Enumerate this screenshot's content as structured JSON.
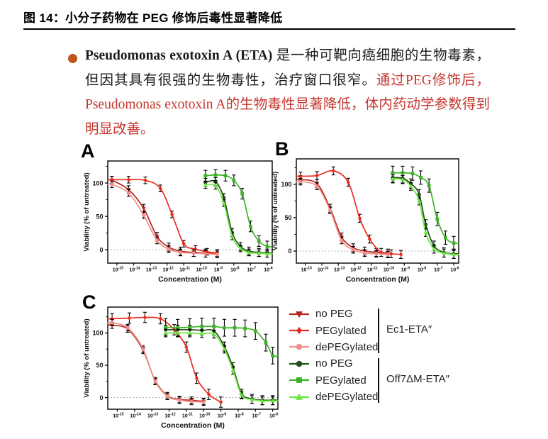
{
  "header": {
    "title": "图 14：小分子药物在 PEG 修饰后毒性显著降低"
  },
  "colors": {
    "red_text": "#c5372e",
    "bullet": "#c2531b",
    "axis": "#000000",
    "zero_line": "#909090"
  },
  "bullet": {
    "lead_bold": "Pseudomonas exotoxin A (ETA)",
    "body_black": " 是一种可靶向癌细胞的生物毒素，但因其具有很强的生物毒性，治疗窗口很窄。",
    "body_red": "通过PEG修饰后，Pseudomonas exotoxin A的生物毒性显著降低，体内药动学参数得到明显改善。"
  },
  "legend": {
    "groups": [
      {
        "label": "Ec1-ETA″",
        "entries": [
          {
            "label": "no PEG",
            "color": "#b2261e",
            "marker": "tri-down"
          },
          {
            "label": "PEGylated",
            "color": "#e72c1f",
            "marker": "diamond"
          },
          {
            "label": "dePEGylated",
            "color": "#f1908a",
            "marker": "circle"
          }
        ]
      },
      {
        "label": "Off7ΔM-ETA″",
        "entries": [
          {
            "label": "no PEG",
            "color": "#24511b",
            "marker": "circle"
          },
          {
            "label": "PEGylated",
            "color": "#3eb228",
            "marker": "square"
          },
          {
            "label": "dePEGylated",
            "color": "#6be93f",
            "marker": "tri-up"
          }
        ]
      }
    ]
  },
  "chart_data": [
    {
      "type": "line",
      "panel": "A",
      "xlabel": "Concentration (M)",
      "ylabel": "Viability (% of untreated)",
      "x_tick_base": "10",
      "x_tick_exponents": [
        -15,
        -14,
        -13,
        -12,
        -11,
        -10,
        -9,
        -8,
        -7,
        -6
      ],
      "y_ticks": [
        0,
        50,
        100
      ],
      "y_minor_ticks": [
        25,
        75,
        125
      ],
      "xlim": [
        -15.55,
        -5.7
      ],
      "ylim": [
        -20,
        133
      ],
      "zero_line": true,
      "grid": false,
      "series": [
        {
          "name": "no PEG (Ec1-ETA″)",
          "color": "#b2261e",
          "marker": "tri-down",
          "extend": "left",
          "err": 6,
          "x": [
            -15.3,
            -14.3,
            -13.4,
            -12.6,
            -11.9,
            -11.2,
            -10.4,
            -9.7,
            -9.0
          ],
          "y": [
            104,
            90,
            62,
            20,
            4,
            -2,
            -4,
            -5,
            -6
          ]
        },
        {
          "name": "PEGylated (Ec1-ETA″)",
          "color": "#e72c1f",
          "marker": "diamond",
          "extend": "left",
          "err": 5,
          "x": [
            -15.3,
            -14.3,
            -13.3,
            -12.4,
            -11.7,
            -11.0,
            -10.3,
            -9.6,
            -9.0
          ],
          "y": [
            105,
            105,
            104,
            92,
            53,
            9,
            1,
            -3,
            -5
          ]
        },
        {
          "name": "dePEGylated (Ec1-ETA″)",
          "color": "#f1908a",
          "marker": "circle",
          "extend": "left",
          "err": 5,
          "x": [
            -15.3,
            -14.3,
            -13.4,
            -12.6,
            -11.9,
            -11.2,
            -10.4,
            -9.7,
            -9.0
          ],
          "y": [
            98,
            85,
            52,
            14,
            1,
            -4,
            -5,
            -6,
            -7
          ]
        },
        {
          "name": "no PEG (Off7ΔM-ETA″)",
          "color": "#24511b",
          "marker": "circle",
          "extend": "right",
          "err": 6,
          "x": [
            -9.7,
            -9.1,
            -8.6,
            -8.1,
            -7.6,
            -7.1,
            -6.5,
            -6.0
          ],
          "y": [
            101,
            102,
            78,
            26,
            5,
            -2,
            -4,
            -5
          ]
        },
        {
          "name": "PEGylated (Off7ΔM-ETA″)",
          "color": "#3eb228",
          "marker": "square",
          "extend": "right",
          "err": 8,
          "x": [
            -9.7,
            -9.1,
            -8.5,
            -8.0,
            -7.5,
            -7.0,
            -6.5,
            -6.0
          ],
          "y": [
            111,
            112,
            111,
            104,
            84,
            35,
            13,
            5
          ]
        },
        {
          "name": "dePEGylated (Off7ΔM-ETA″)",
          "color": "#6be93f",
          "marker": "tri-up",
          "extend": "right",
          "err": 5,
          "x": [
            -9.7,
            -9.1,
            -8.6,
            -8.1,
            -7.6,
            -7.1,
            -6.5,
            -6.0
          ],
          "y": [
            97,
            96,
            70,
            20,
            2,
            -4,
            -5,
            -6
          ]
        }
      ]
    },
    {
      "type": "line",
      "panel": "B",
      "xlabel": "Concentration (M)",
      "ylabel": "Viability (% of untreated)",
      "x_tick_base": "10",
      "x_tick_exponents": [
        -15,
        -14,
        -13,
        -12,
        -11,
        -10,
        -9,
        -8,
        -7,
        -6
      ],
      "y_ticks": [
        0,
        50,
        100
      ],
      "y_minor_ticks": [
        25,
        75,
        125
      ],
      "xlim": [
        -15.55,
        -5.7
      ],
      "ylim": [
        -18,
        138
      ],
      "zero_line": true,
      "grid": false,
      "series": [
        {
          "name": "no PEG (Ec1-ETA″)",
          "color": "#b2261e",
          "marker": "tri-down",
          "extend": "left",
          "err": 6,
          "x": [
            -15.3,
            -14.3,
            -13.5,
            -12.8,
            -12.1,
            -11.4,
            -10.7,
            -10.0
          ],
          "y": [
            107,
            101,
            64,
            21,
            5,
            0,
            -2,
            -3
          ]
        },
        {
          "name": "PEGylated (Ec1-ETA″)",
          "color": "#e72c1f",
          "marker": "diamond",
          "extend": "left",
          "err": 6,
          "x": [
            -15.3,
            -14.3,
            -13.3,
            -12.4,
            -11.7,
            -11.1,
            -10.4,
            -9.8,
            -9.2
          ],
          "y": [
            112,
            113,
            120,
            103,
            49,
            18,
            -2,
            -4,
            -5
          ]
        },
        {
          "name": "dePEGylated (Ec1-ETA″)",
          "color": "#f1908a",
          "marker": "circle",
          "extend": "left",
          "err": 5,
          "x": [
            -15.3,
            -14.3,
            -13.5,
            -12.8,
            -12.1,
            -11.4,
            -10.7,
            -10.0
          ],
          "y": [
            104,
            97,
            61,
            16,
            2,
            -3,
            -4,
            -5
          ]
        },
        {
          "name": "no PEG (Off7ΔM-ETA″)",
          "color": "#24511b",
          "marker": "circle",
          "extend": "right",
          "err": 7,
          "x": [
            -9.7,
            -9.1,
            -8.6,
            -8.1,
            -7.7,
            -7.2,
            -6.6,
            -6.0
          ],
          "y": [
            110,
            109,
            101,
            85,
            40,
            8,
            -2,
            -4
          ]
        },
        {
          "name": "PEGylated (Off7ΔM-ETA″)",
          "color": "#3eb228",
          "marker": "square",
          "extend": "right",
          "err": 10,
          "x": [
            -9.7,
            -9.1,
            -8.5,
            -8.0,
            -7.5,
            -7.0,
            -6.5,
            -6.0
          ],
          "y": [
            117,
            117,
            116,
            110,
            98,
            48,
            20,
            12
          ]
        },
        {
          "name": "dePEGylated (Off7ΔM-ETA″)",
          "color": "#6be93f",
          "marker": "tri-up",
          "extend": "right",
          "err": 6,
          "x": [
            -9.7,
            -9.1,
            -8.6,
            -8.1,
            -7.7,
            -7.2,
            -6.6,
            -6.0
          ],
          "y": [
            108,
            107,
            97,
            75,
            28,
            3,
            -3,
            -5
          ]
        }
      ]
    },
    {
      "type": "line",
      "panel": "C",
      "xlabel": "Concentration (M)",
      "ylabel": "Viability (% of untreated)",
      "x_tick_base": "10",
      "x_tick_exponents": [
        -15,
        -14,
        -13,
        -12,
        -11,
        -10,
        -9,
        -8,
        -7,
        -6
      ],
      "y_ticks": [
        0,
        50,
        100
      ],
      "y_minor_ticks": [
        25,
        75,
        125
      ],
      "xlim": [
        -15.55,
        -5.7
      ],
      "ylim": [
        -18,
        140
      ],
      "zero_line": true,
      "grid": false,
      "series": [
        {
          "name": "no PEG (Ec1-ETA″)",
          "color": "#b2261e",
          "marker": "tri-down",
          "extend": "left",
          "err": 5,
          "x": [
            -15.3,
            -14.4,
            -13.5,
            -12.8,
            -12.1,
            -11.4,
            -10.7,
            -10.0
          ],
          "y": [
            112,
            106,
            73,
            26,
            3,
            -3,
            -4,
            -6
          ]
        },
        {
          "name": "PEGylated (Ec1-ETA″)",
          "color": "#e72c1f",
          "marker": "diamond",
          "extend": "left",
          "err": 8,
          "x": [
            -15.3,
            -14.3,
            -13.4,
            -12.5,
            -11.7,
            -11.0,
            -10.4,
            -9.7,
            -9.0
          ],
          "y": [
            122,
            123,
            124,
            122,
            105,
            78,
            30,
            5,
            -7
          ]
        },
        {
          "name": "dePEGylated (Ec1-ETA″)",
          "color": "#f1908a",
          "marker": "circle",
          "extend": "left",
          "err": 5,
          "x": [
            -15.3,
            -14.4,
            -13.5,
            -12.8,
            -12.1,
            -11.4,
            -10.7,
            -10.0
          ],
          "y": [
            116,
            108,
            75,
            25,
            2,
            -4,
            -6,
            -7
          ]
        },
        {
          "name": "no PEG (Off7ΔM-ETA″)",
          "color": "#24511b",
          "marker": "circle",
          "extend": "right",
          "err": 7,
          "x": [
            -12.2,
            -11.5,
            -10.8,
            -10.1,
            -9.4,
            -8.8,
            -8.3,
            -7.8,
            -7.2,
            -6.6,
            -6.0
          ],
          "y": [
            105,
            105,
            105,
            104,
            103,
            79,
            47,
            6,
            -2,
            -4,
            -4
          ]
        },
        {
          "name": "PEGylated (Off7ΔM-ETA″)",
          "color": "#3eb228",
          "marker": "square",
          "extend": "right",
          "err": 13,
          "x": [
            -12.2,
            -11.5,
            -10.8,
            -10.1,
            -9.4,
            -8.8,
            -8.2,
            -7.6,
            -7.0,
            -6.4,
            -6.0
          ],
          "y": [
            109,
            108,
            109,
            110,
            110,
            108,
            108,
            107,
            103,
            85,
            65
          ]
        },
        {
          "name": "dePEGylated (Off7ΔM-ETA″)",
          "color": "#6be93f",
          "marker": "tri-up",
          "extend": "right",
          "err": 6,
          "x": [
            -12.2,
            -11.5,
            -10.8,
            -10.1,
            -9.4,
            -8.8,
            -8.3,
            -7.8,
            -7.2,
            -6.6,
            -6.0
          ],
          "y": [
            100,
            100,
            100,
            99,
            98,
            75,
            42,
            4,
            -3,
            -5,
            -5
          ]
        }
      ]
    }
  ]
}
